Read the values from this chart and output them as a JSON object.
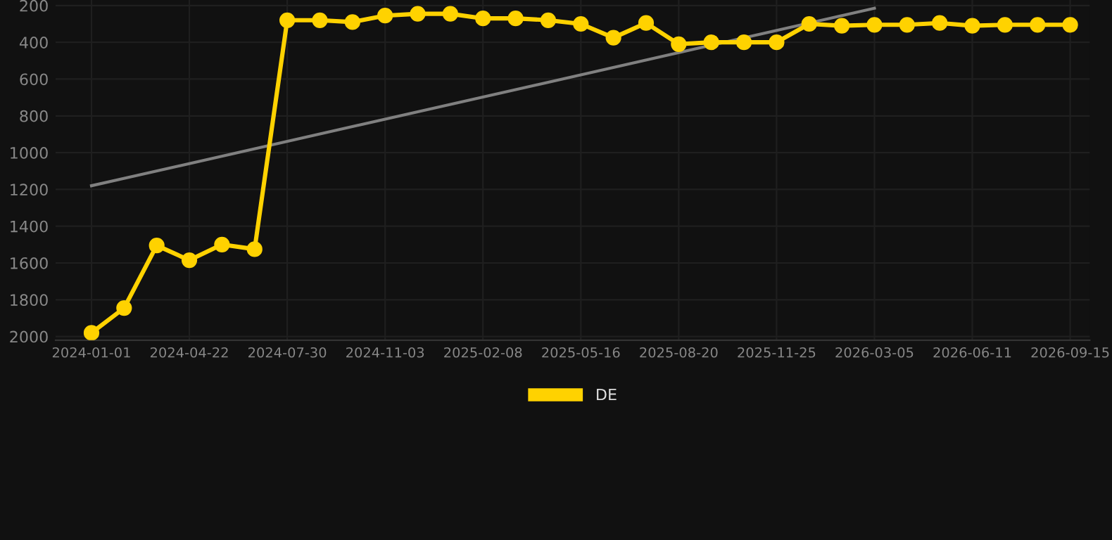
{
  "chart_data": {
    "type": "line",
    "categories": [
      "2024-01-01",
      null,
      null,
      "2024-04-22",
      null,
      null,
      "2024-07-30",
      null,
      null,
      "2024-11-03",
      null,
      null,
      "2025-02-08",
      null,
      null,
      "2025-05-16",
      null,
      null,
      "2025-08-20",
      null,
      null,
      "2025-11-25",
      null,
      null,
      "2026-03-05",
      null,
      null,
      "2026-06-11",
      null,
      null,
      "2026-09-15"
    ],
    "series": [
      {
        "name": "DE",
        "color": "#ffd200",
        "marker": "circle",
        "values": [
          1980,
          1845,
          1505,
          1585,
          1500,
          1525,
          280,
          280,
          290,
          255,
          245,
          245,
          270,
          270,
          280,
          300,
          375,
          295,
          410,
          400,
          400,
          400,
          300,
          310,
          305,
          305,
          295,
          310,
          305,
          305,
          305
        ]
      },
      {
        "type": "line",
        "color": "#808080",
        "marker": "none",
        "values": [
          1180,
          null,
          null,
          null,
          null,
          null,
          null,
          null,
          null,
          null,
          null,
          null,
          null,
          null,
          null,
          null,
          null,
          null,
          null,
          null,
          null,
          null,
          null,
          null,
          215,
          null,
          null,
          null,
          null,
          null,
          null
        ]
      }
    ],
    "ylim": [
      2020,
      170
    ],
    "yticks": [
      200,
      400,
      600,
      800,
      1000,
      1200,
      1400,
      1600,
      1800,
      2000
    ],
    "grid": true,
    "legend": "bottom"
  }
}
